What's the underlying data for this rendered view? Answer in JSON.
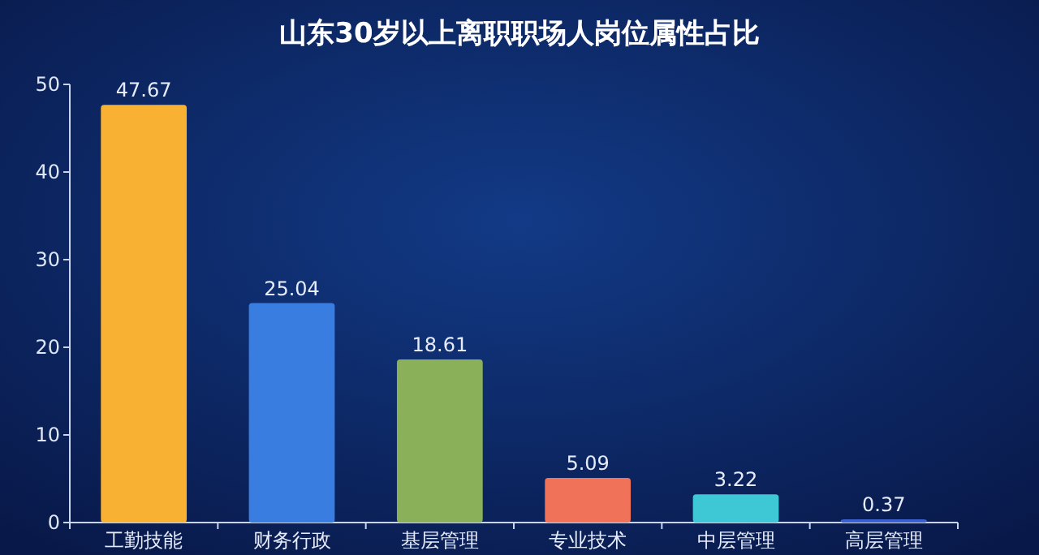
{
  "chart_data": {
    "type": "bar",
    "title": "山东30岁以上离职职场人岗位属性占比",
    "categories": [
      "工勤技能",
      "财务行政",
      "基层管理",
      "专业技术",
      "中层管理",
      "高层管理"
    ],
    "values": [
      47.67,
      25.04,
      18.61,
      5.09,
      3.22,
      0.37
    ],
    "colors": [
      "#f8b133",
      "#3a7de0",
      "#8ab15a",
      "#f07258",
      "#3ec8d6",
      "#3a5fd0"
    ],
    "ylim": [
      0,
      50
    ],
    "yticks": [
      0,
      10,
      20,
      30,
      40,
      50
    ],
    "data_labels": true
  }
}
